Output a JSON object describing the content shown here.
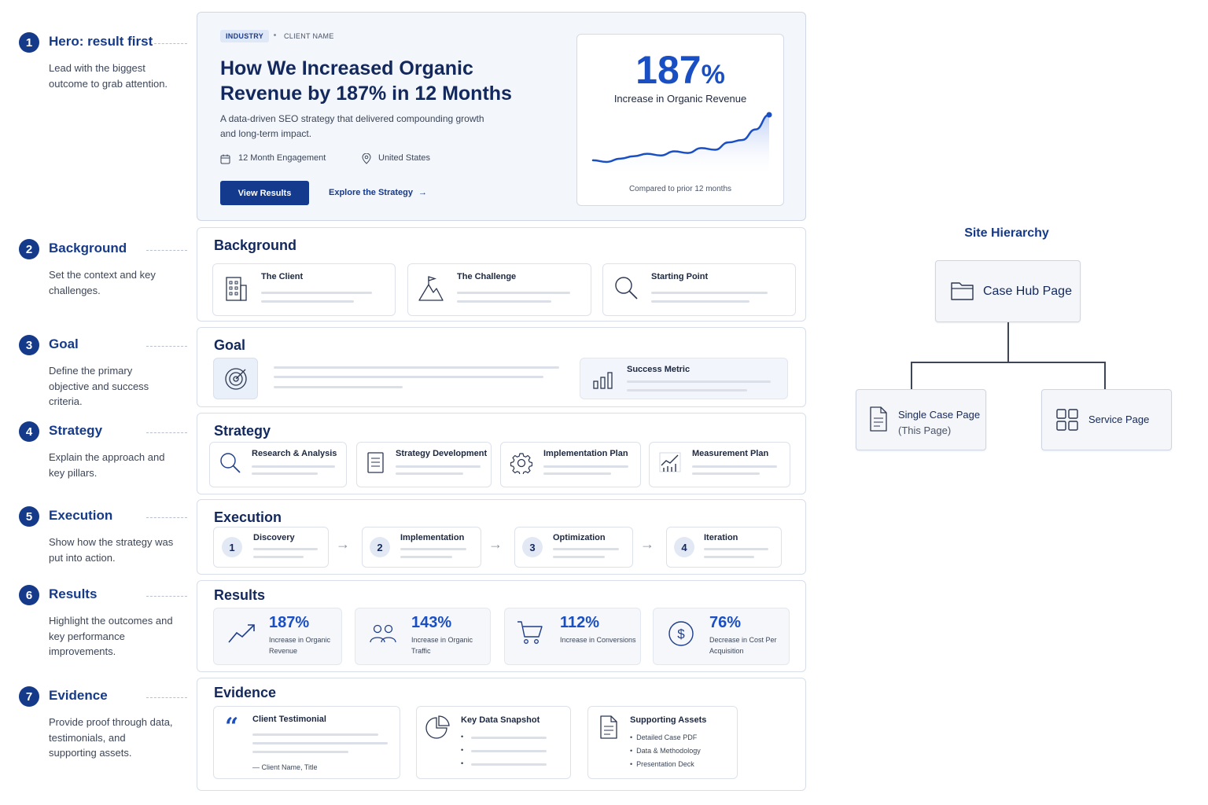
{
  "annotations": [
    {
      "num": "1",
      "title": "Hero: result first",
      "desc": "Lead with the biggest outcome to grab attention."
    },
    {
      "num": "2",
      "title": "Background",
      "desc": "Set the context and key challenges."
    },
    {
      "num": "3",
      "title": "Goal",
      "desc": "Define the primary objective and success criteria."
    },
    {
      "num": "4",
      "title": "Strategy",
      "desc": "Explain the approach and key pillars."
    },
    {
      "num": "5",
      "title": "Execution",
      "desc": "Show how the strategy was put into action."
    },
    {
      "num": "6",
      "title": "Results",
      "desc": "Highlight the outcomes and key performance improvements."
    },
    {
      "num": "7",
      "title": "Evidence",
      "desc": "Provide proof through data, testimonials, and supporting assets."
    }
  ],
  "hero": {
    "tag": "INDUSTRY",
    "client": "CLIENT NAME",
    "title": "How We Increased Organic Revenue by 187% in 12 Months",
    "lede": "A data-driven SEO strategy that delivered compounding growth and long-term impact.",
    "engagement": "12 Month Engagement",
    "location": "United States",
    "primary_button": "View Results",
    "secondary_link": "Explore the Strategy",
    "stat_value": "187",
    "stat_unit": "%",
    "stat_label": "Increase in Organic Revenue",
    "stat_footer": "Compared to prior 12 months",
    "sparkline": [
      2,
      0,
      4,
      7,
      10,
      8,
      13,
      11,
      17,
      15,
      24,
      27,
      40,
      58
    ]
  },
  "background": {
    "heading": "Background",
    "items": [
      "The Client",
      "The Challenge",
      "Starting Point"
    ]
  },
  "goal": {
    "heading": "Goal",
    "metric_label": "Success Metric"
  },
  "strategy": {
    "heading": "Strategy",
    "items": [
      "Research & Analysis",
      "Strategy Development",
      "Implementation Plan",
      "Measurement Plan"
    ]
  },
  "execution": {
    "heading": "Execution",
    "steps": [
      {
        "num": "1",
        "label": "Discovery"
      },
      {
        "num": "2",
        "label": "Implementation"
      },
      {
        "num": "3",
        "label": "Optimization"
      },
      {
        "num": "4",
        "label": "Iteration"
      }
    ]
  },
  "results": {
    "heading": "Results",
    "metrics": [
      {
        "value": "187%",
        "desc": "Increase in Organic Revenue"
      },
      {
        "value": "143%",
        "desc": "Increase in Organic Traffic"
      },
      {
        "value": "112%",
        "desc": "Increase in Conversions"
      },
      {
        "value": "76%",
        "desc": "Decrease in Cost Per Acquisition"
      }
    ]
  },
  "evidence": {
    "heading": "Evidence",
    "testimonial_label": "Client Testimonial",
    "testimonial_author": "— Client Name, Title",
    "snapshot_label": "Key Data Snapshot",
    "assets_label": "Supporting Assets",
    "assets": [
      "Detailed Case PDF",
      "Data & Methodology",
      "Presentation Deck"
    ]
  },
  "hierarchy": {
    "title": "Site Hierarchy",
    "root": "Case Hub Page",
    "child_1": "Single Case Page",
    "child_1_note": "(This Page)",
    "child_2": "Service Page"
  },
  "colors": {
    "accent": "#1a4fc4",
    "navy": "#13285c",
    "button": "#133a8c"
  }
}
